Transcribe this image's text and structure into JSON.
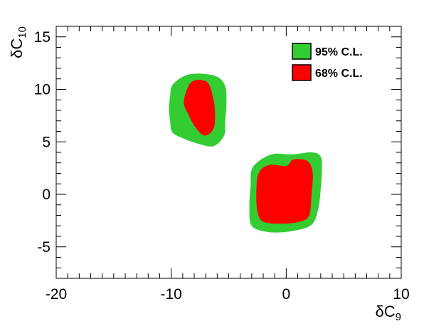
{
  "chart_data": {
    "type": "contour",
    "title": "",
    "xlabel": {
      "base": "δC",
      "sub": "9"
    },
    "ylabel": {
      "base": "δC",
      "sub": "10"
    },
    "xlim": [
      -20,
      10
    ],
    "ylim": [
      -8,
      16
    ],
    "x_ticks": [
      -20,
      -10,
      0,
      10
    ],
    "y_ticks": [
      -5,
      0,
      5,
      10,
      15
    ],
    "x_minor_step": 1,
    "y_minor_step": 1,
    "grid": false,
    "legend_position": "top-right",
    "series": [
      {
        "name": "95% C.L.",
        "color": "#33cc33",
        "regions": [
          [
            [
              -8.8,
              11.3
            ],
            [
              -7.5,
              11.5
            ],
            [
              -6.0,
              11.2
            ],
            [
              -5.3,
              10.3
            ],
            [
              -5.2,
              8.8
            ],
            [
              -5.3,
              7.0
            ],
            [
              -5.4,
              5.6
            ],
            [
              -6.3,
              4.6
            ],
            [
              -7.6,
              4.8
            ],
            [
              -8.9,
              5.3
            ],
            [
              -9.9,
              5.9
            ],
            [
              -10.1,
              7.0
            ],
            [
              -10.2,
              8.2
            ],
            [
              -10.1,
              9.3
            ],
            [
              -9.9,
              10.4
            ]
          ],
          [
            [
              -1.3,
              3.8
            ],
            [
              0.5,
              3.8
            ],
            [
              2.2,
              4.0
            ],
            [
              3.0,
              3.6
            ],
            [
              3.1,
              2.2
            ],
            [
              3.0,
              0.5
            ],
            [
              2.8,
              -1.3
            ],
            [
              2.2,
              -2.9
            ],
            [
              0.5,
              -3.5
            ],
            [
              -1.5,
              -3.6
            ],
            [
              -3.0,
              -3.0
            ],
            [
              -3.2,
              -1.2
            ],
            [
              -3.1,
              0.8
            ],
            [
              -2.9,
              2.6
            ]
          ]
        ]
      },
      {
        "name": "68% C.L.",
        "color": "#ff0000",
        "regions": [
          [
            [
              -8.4,
              10.5
            ],
            [
              -7.6,
              10.9
            ],
            [
              -6.8,
              10.6
            ],
            [
              -6.4,
              9.4
            ],
            [
              -6.2,
              8.0
            ],
            [
              -6.3,
              6.3
            ],
            [
              -7.1,
              5.6
            ],
            [
              -7.9,
              6.4
            ],
            [
              -8.5,
              7.6
            ],
            [
              -8.9,
              8.8
            ]
          ],
          [
            [
              -1.5,
              2.8
            ],
            [
              0.0,
              2.7
            ],
            [
              0.6,
              3.3
            ],
            [
              1.8,
              3.2
            ],
            [
              2.3,
              2.1
            ],
            [
              2.2,
              0.0
            ],
            [
              2.0,
              -2.0
            ],
            [
              1.2,
              -2.6
            ],
            [
              -0.4,
              -2.8
            ],
            [
              -2.0,
              -2.6
            ],
            [
              -2.5,
              -1.6
            ],
            [
              -2.6,
              0.2
            ],
            [
              -2.4,
              2.0
            ]
          ]
        ]
      }
    ]
  }
}
